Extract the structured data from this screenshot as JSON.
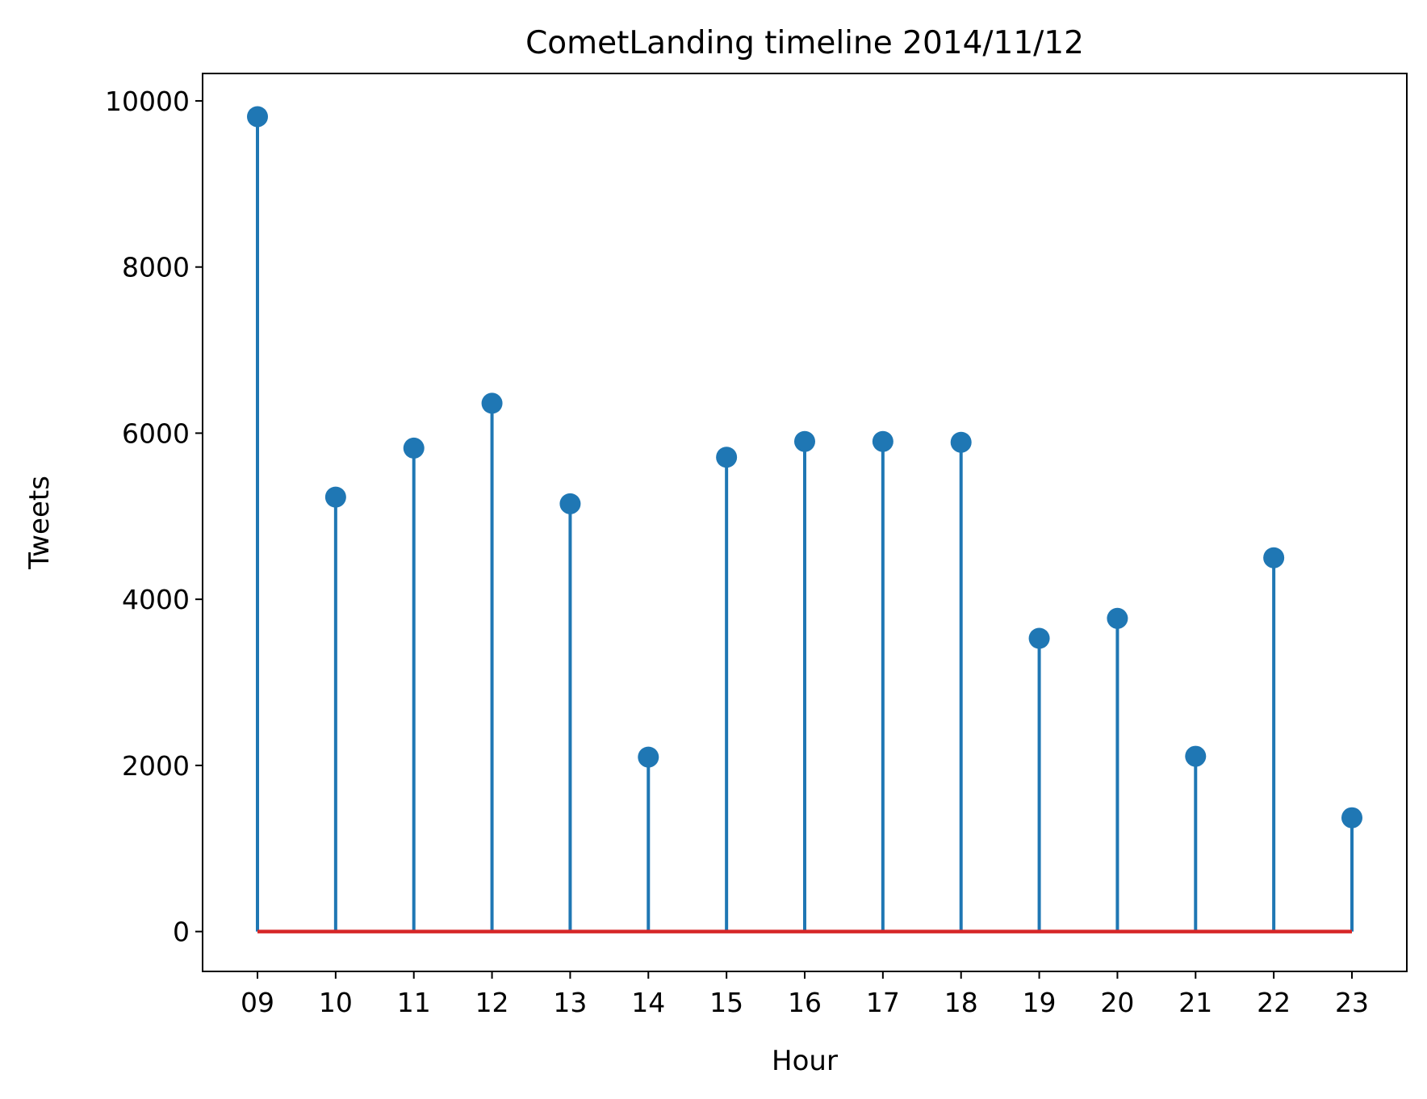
{
  "chart_data": {
    "type": "stem",
    "title": "CometLanding timeline 2014/11/12",
    "xlabel": "Hour",
    "ylabel": "Tweets",
    "categories": [
      "09",
      "10",
      "11",
      "12",
      "13",
      "14",
      "15",
      "16",
      "17",
      "18",
      "19",
      "20",
      "21",
      "22",
      "23"
    ],
    "values": [
      9810,
      5230,
      5820,
      6360,
      5150,
      2100,
      5710,
      5900,
      5900,
      5890,
      3530,
      3770,
      2110,
      4500,
      1370
    ],
    "ylim": [
      -480,
      10330
    ],
    "yticks": [
      0,
      2000,
      4000,
      6000,
      8000,
      10000
    ],
    "grid": false,
    "colors": {
      "stem": "#1f77b4",
      "marker": "#1f77b4",
      "baseline": "#d62728"
    }
  }
}
